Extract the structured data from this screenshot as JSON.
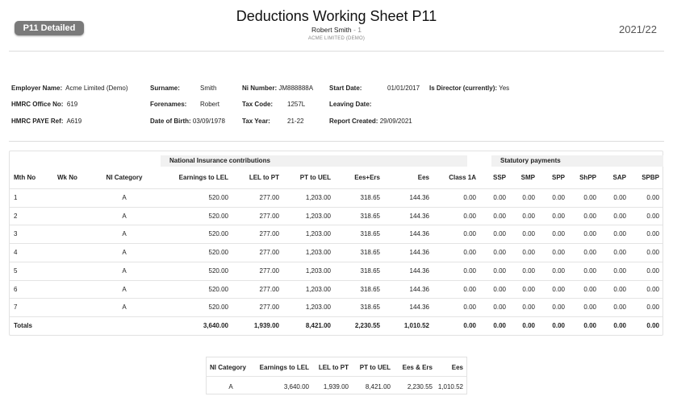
{
  "header": {
    "badge": "P11 Detailed",
    "title": "Deductions Working Sheet P11",
    "employee_name": "Robert Smith",
    "employee_sep": " - ",
    "employee_number": "1",
    "company": "ACME LIMITED (DEMO)",
    "tax_year": "2021/22"
  },
  "info": {
    "employer_name_label": "Employer Name:",
    "employer_name": "Acme Limited (Demo)",
    "hmrc_office_label": "HMRC Office No:",
    "hmrc_office": "619",
    "paye_ref_label": "HMRC PAYE Ref:",
    "paye_ref": "A619",
    "surname_label": "Surname:",
    "surname": "Smith",
    "forenames_label": "Forenames:",
    "forenames": "Robert",
    "dob_label": "Date of Birth:",
    "dob": "03/09/1978",
    "ni_label": "Ni Number:",
    "ni": "JM888888A",
    "tax_code_label": "Tax Code:",
    "tax_code": "1257L",
    "tax_year_label": "Tax Year:",
    "tax_year": "21-22",
    "start_label": "Start Date:",
    "start": "01/01/2017",
    "leaving_label": "Leaving Date:",
    "leaving": "",
    "report_label": "Report Created:",
    "report": "29/09/2021",
    "director_label": "Is Director (currently):",
    "director": "Yes"
  },
  "table": {
    "group_ni": "National Insurance contributions",
    "group_stat": "Statutory payments",
    "columns": [
      "Mth No",
      "Wk No",
      "NI Category",
      "Earnings to LEL",
      "LEL to PT",
      "PT to UEL",
      "Ees+Ers",
      "Ees",
      "Class 1A",
      "SSP",
      "SMP",
      "SPP",
      "ShPP",
      "SAP",
      "SPBP"
    ],
    "rows": [
      [
        "1",
        "",
        "A",
        "520.00",
        "277.00",
        "1,203.00",
        "318.65",
        "144.36",
        "0.00",
        "0.00",
        "0.00",
        "0.00",
        "0.00",
        "0.00",
        "0.00"
      ],
      [
        "2",
        "",
        "A",
        "520.00",
        "277.00",
        "1,203.00",
        "318.65",
        "144.36",
        "0.00",
        "0.00",
        "0.00",
        "0.00",
        "0.00",
        "0.00",
        "0.00"
      ],
      [
        "3",
        "",
        "A",
        "520.00",
        "277.00",
        "1,203.00",
        "318.65",
        "144.36",
        "0.00",
        "0.00",
        "0.00",
        "0.00",
        "0.00",
        "0.00",
        "0.00"
      ],
      [
        "4",
        "",
        "A",
        "520.00",
        "277.00",
        "1,203.00",
        "318.65",
        "144.36",
        "0.00",
        "0.00",
        "0.00",
        "0.00",
        "0.00",
        "0.00",
        "0.00"
      ],
      [
        "5",
        "",
        "A",
        "520.00",
        "277.00",
        "1,203.00",
        "318.65",
        "144.36",
        "0.00",
        "0.00",
        "0.00",
        "0.00",
        "0.00",
        "0.00",
        "0.00"
      ],
      [
        "6",
        "",
        "A",
        "520.00",
        "277.00",
        "1,203.00",
        "318.65",
        "144.36",
        "0.00",
        "0.00",
        "0.00",
        "0.00",
        "0.00",
        "0.00",
        "0.00"
      ],
      [
        "7",
        "",
        "A",
        "520.00",
        "277.00",
        "1,203.00",
        "318.65",
        "144.36",
        "0.00",
        "0.00",
        "0.00",
        "0.00",
        "0.00",
        "0.00",
        "0.00"
      ]
    ],
    "totals": [
      "Totals",
      "",
      "",
      "3,640.00",
      "1,939.00",
      "8,421.00",
      "2,230.55",
      "1,010.52",
      "0.00",
      "0.00",
      "0.00",
      "0.00",
      "0.00",
      "0.00",
      "0.00"
    ]
  },
  "summary": {
    "columns": [
      "NI Category",
      "Earnings to LEL",
      "LEL to PT",
      "PT to UEL",
      "Ees & Ers",
      "Ees"
    ],
    "row": [
      "A",
      "3,640.00",
      "1,939.00",
      "8,421.00",
      "2,230.55",
      "1,010.52"
    ]
  }
}
